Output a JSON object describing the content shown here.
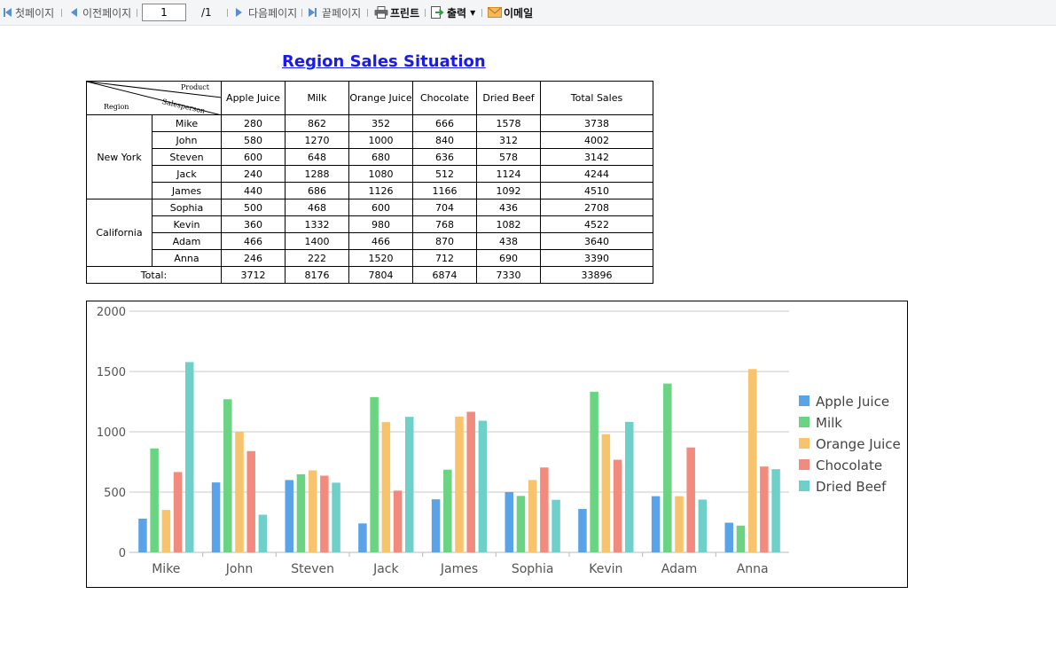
{
  "toolbar": {
    "first_page": "첫페이지",
    "prev_page": "이전페이지",
    "page_value": "1",
    "page_total": "/1",
    "next_page": "다음페이지",
    "last_page": "끝페이지",
    "print": "프린트",
    "export": "출력",
    "email": "이메일"
  },
  "report": {
    "title": "Region Sales Situation",
    "header": {
      "product": "Product",
      "salesperson": "Salesperson",
      "region": "Region",
      "columns": [
        "Apple Juice",
        "Milk",
        "Orange Juice",
        "Chocolate",
        "Dried Beef",
        "Total Sales"
      ]
    },
    "regions": [
      {
        "name": "New York",
        "rows": [
          {
            "name": "Mike",
            "values": [
              "280",
              "862",
              "352",
              "666",
              "1578",
              "3738"
            ]
          },
          {
            "name": "John",
            "values": [
              "580",
              "1270",
              "1000",
              "840",
              "312",
              "4002"
            ]
          },
          {
            "name": "Steven",
            "values": [
              "600",
              "648",
              "680",
              "636",
              "578",
              "3142"
            ]
          },
          {
            "name": "Jack",
            "values": [
              "240",
              "1288",
              "1080",
              "512",
              "1124",
              "4244"
            ]
          },
          {
            "name": "James",
            "values": [
              "440",
              "686",
              "1126",
              "1166",
              "1092",
              "4510"
            ]
          }
        ]
      },
      {
        "name": "California",
        "rows": [
          {
            "name": "Sophia",
            "values": [
              "500",
              "468",
              "600",
              "704",
              "436",
              "2708"
            ]
          },
          {
            "name": "Kevin",
            "values": [
              "360",
              "1332",
              "980",
              "768",
              "1082",
              "4522"
            ]
          },
          {
            "name": "Adam",
            "values": [
              "466",
              "1400",
              "466",
              "870",
              "438",
              "3640"
            ]
          },
          {
            "name": "Anna",
            "values": [
              "246",
              "222",
              "1520",
              "712",
              "690",
              "3390"
            ]
          }
        ]
      }
    ],
    "total": {
      "label": "Total:",
      "values": [
        "3712",
        "8176",
        "7804",
        "6874",
        "7330",
        "33896"
      ]
    }
  },
  "chart_data": {
    "type": "bar",
    "categories": [
      "Mike",
      "John",
      "Steven",
      "Jack",
      "James",
      "Sophia",
      "Kevin",
      "Adam",
      "Anna"
    ],
    "series": [
      {
        "name": "Apple Juice",
        "color": "#5aa3e8",
        "values": [
          280,
          580,
          600,
          240,
          440,
          500,
          360,
          466,
          246
        ]
      },
      {
        "name": "Milk",
        "color": "#6ad483",
        "values": [
          862,
          1270,
          648,
          1288,
          686,
          468,
          1332,
          1400,
          222
        ]
      },
      {
        "name": "Orange Juice",
        "color": "#f7c36c",
        "values": [
          352,
          1000,
          680,
          1080,
          1126,
          600,
          980,
          466,
          1520
        ]
      },
      {
        "name": "Chocolate",
        "color": "#f28b7e",
        "values": [
          666,
          840,
          636,
          512,
          1166,
          704,
          768,
          870,
          712
        ]
      },
      {
        "name": "Dried Beef",
        "color": "#6ed0c8",
        "values": [
          1578,
          312,
          578,
          1124,
          1092,
          436,
          1082,
          438,
          690
        ]
      }
    ],
    "yticks": [
      0,
      500,
      1000,
      1500,
      2000
    ],
    "ylim": [
      0,
      2000
    ],
    "grid": true,
    "legend": "right"
  }
}
